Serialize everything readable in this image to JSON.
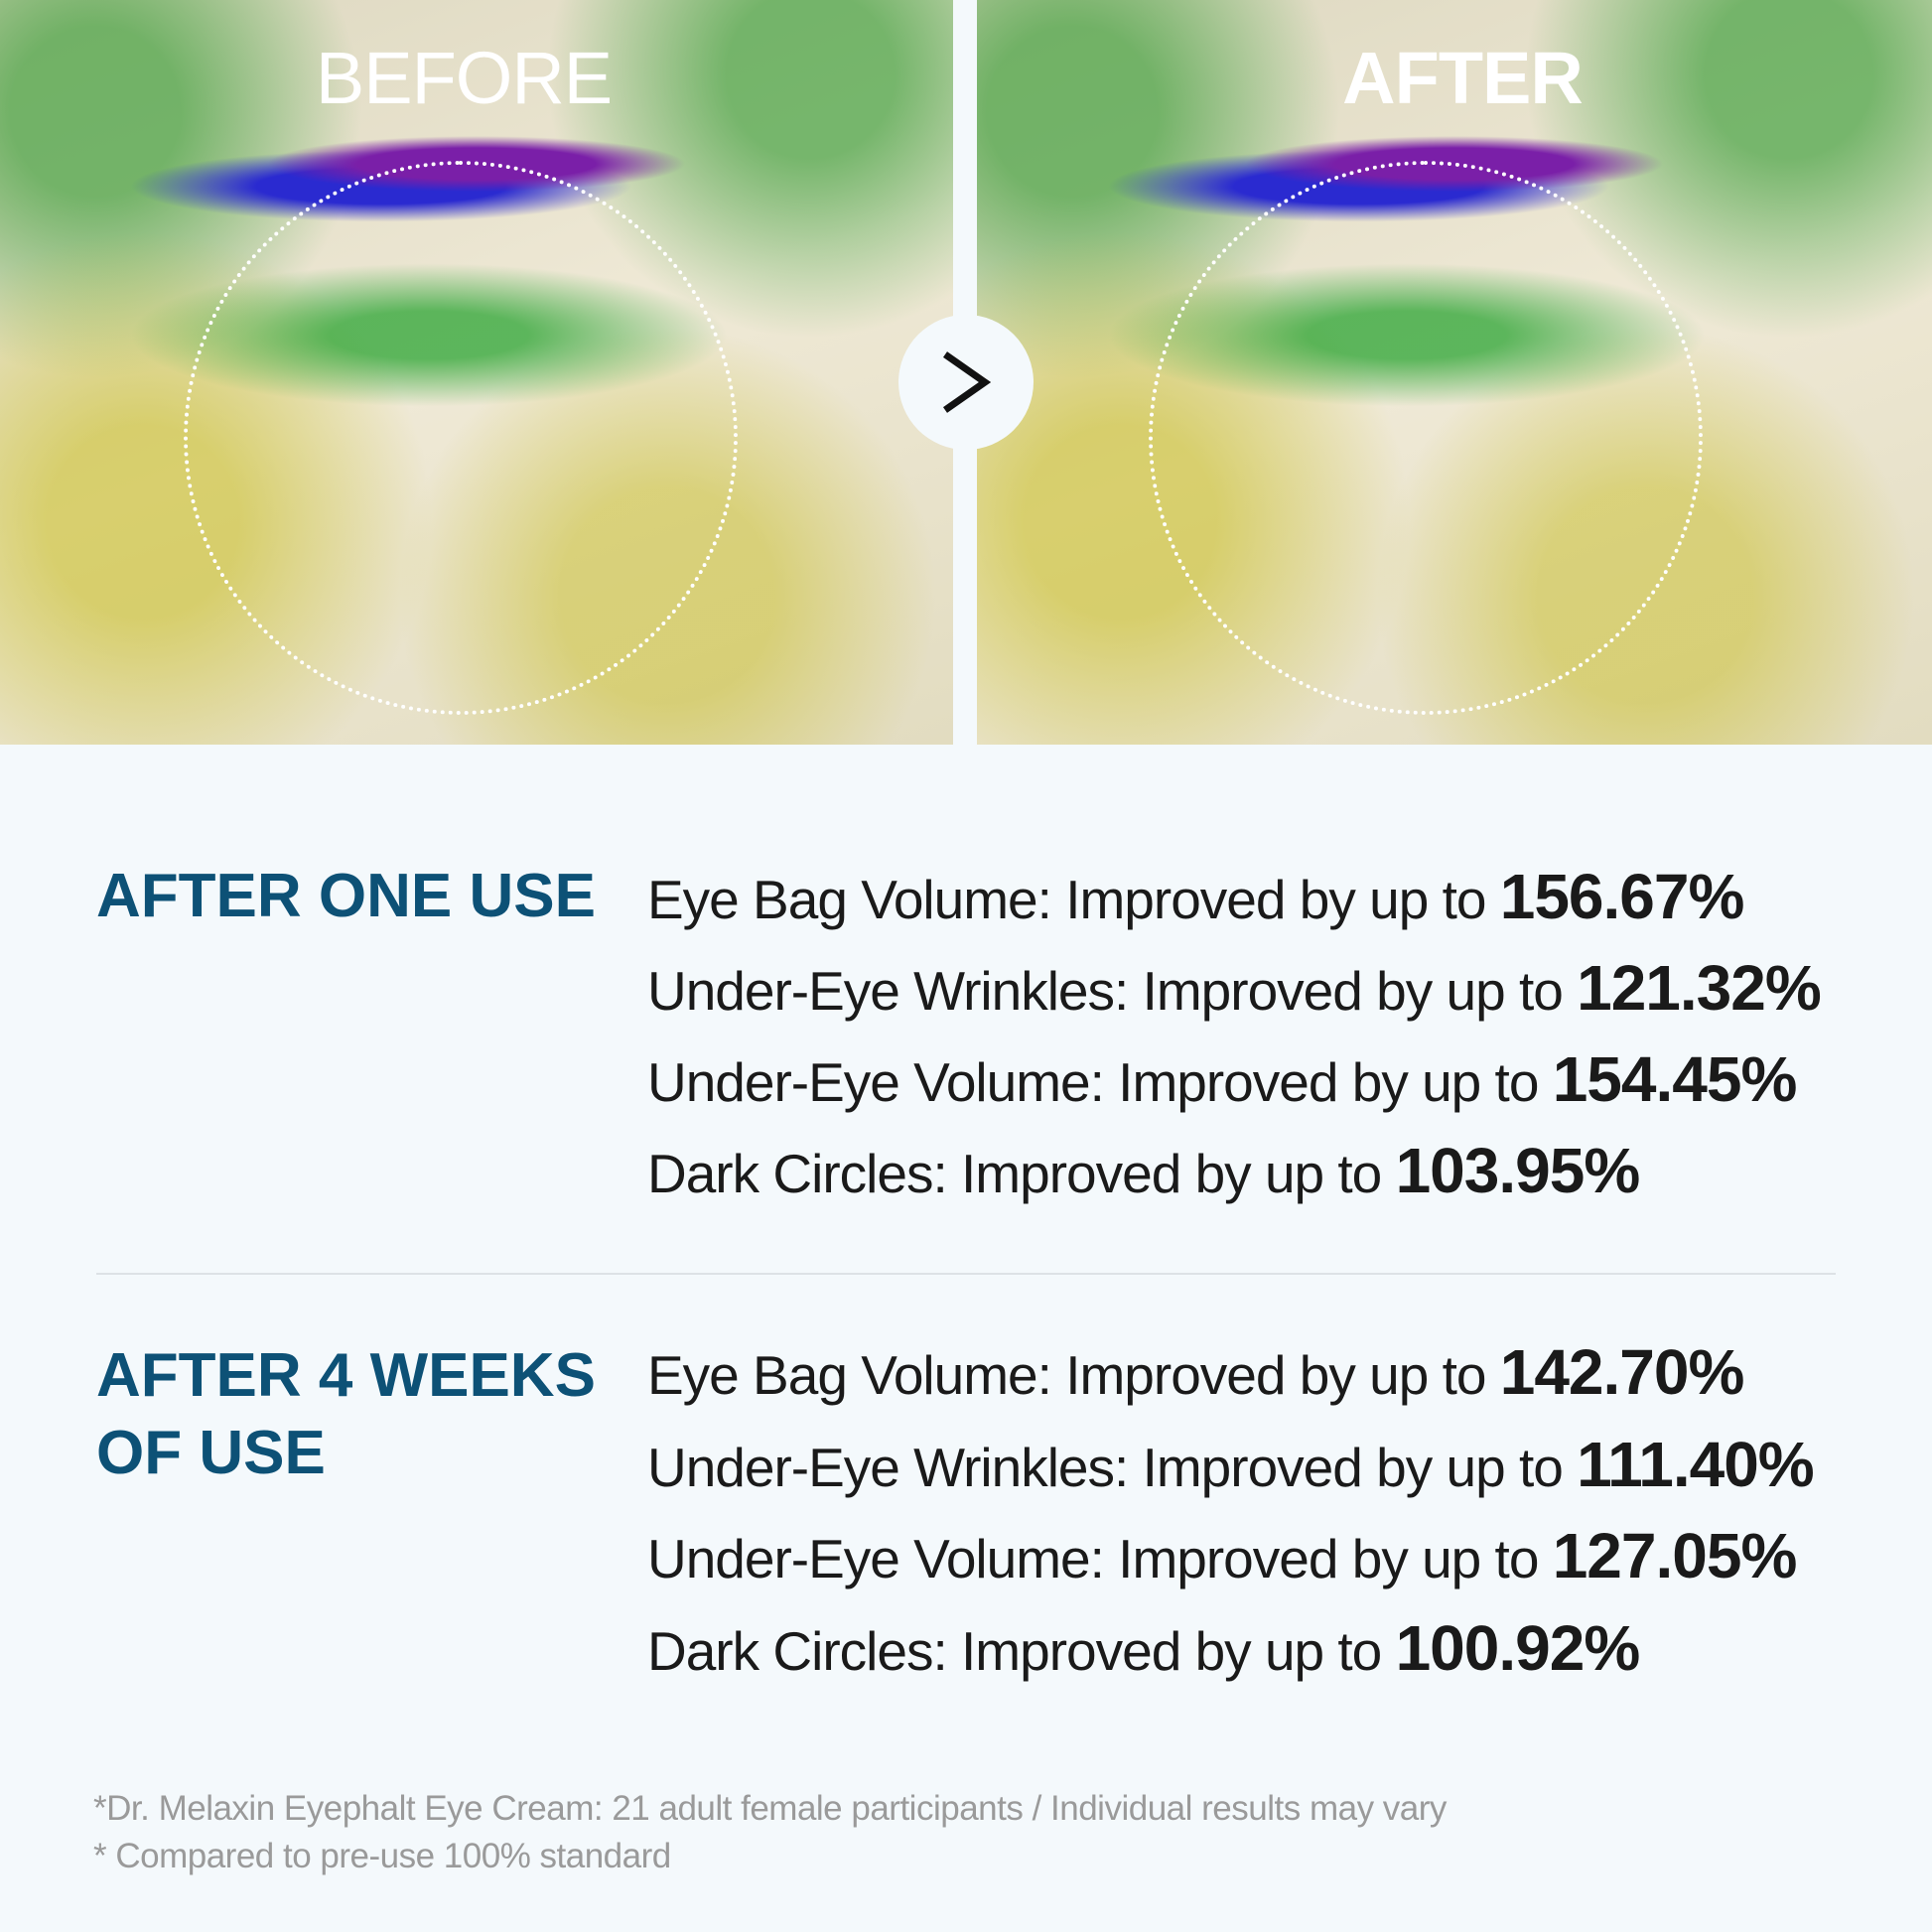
{
  "images": {
    "before_label": "BEFORE",
    "after_label": "AFTER",
    "arrow_icon": "chevron-right-icon"
  },
  "sections": [
    {
      "heading": "AFTER ONE USE",
      "items": [
        {
          "label": "Eye Bag Volume: Improved by up to",
          "value": "156.67%"
        },
        {
          "label": "Under-Eye Wrinkles: Improved by up to",
          "value": "121.32%"
        },
        {
          "label": "Under-Eye Volume: Improved by up to",
          "value": "154.45%"
        },
        {
          "label": "Dark Circles: Improved by up to",
          "value": "103.95%"
        }
      ]
    },
    {
      "heading": "AFTER 4 WEEKS OF USE",
      "items": [
        {
          "label": "Eye Bag Volume: Improved by up to",
          "value": "142.70%"
        },
        {
          "label": "Under-Eye Wrinkles: Improved by up to",
          "value": "111.40%"
        },
        {
          "label": "Under-Eye Volume: Improved by up to",
          "value": "127.05%"
        },
        {
          "label": "Dark Circles: Improved by up to",
          "value": "100.92%"
        }
      ]
    }
  ],
  "footnotes": [
    "*Dr. Melaxin Eyephalt Eye Cream: 21 adult female participants / Individual results may vary",
    "* Compared to pre-use 100% standard"
  ],
  "colors": {
    "heading": "#0d5176",
    "background": "#f4f9fc"
  }
}
